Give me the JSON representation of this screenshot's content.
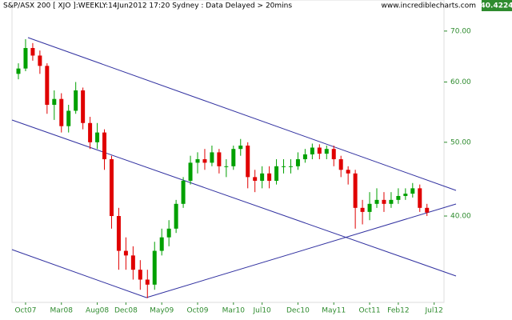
{
  "chart_data": {
    "type": "candlestick",
    "title": "S&P/ASX 200 [ XJO ]:WEEKLY:14Jun2012 17:20 Sydney : Data Delayed > 20mins",
    "source": "www.incrediblecharts.com",
    "last_price": 40.4224,
    "categories": [
      null,
      "Oct07",
      null,
      null,
      null,
      null,
      "Mar08",
      null,
      null,
      null,
      null,
      "Aug08",
      null,
      null,
      null,
      "Dec08",
      null,
      null,
      null,
      null,
      "May09",
      null,
      null,
      null,
      null,
      "Oct09",
      null,
      null,
      null,
      null,
      "Mar10",
      null,
      null,
      null,
      "Jul10",
      null,
      null,
      null,
      null,
      "Dec10",
      null,
      null,
      null,
      null,
      "May11",
      null,
      null,
      null,
      null,
      "Oct11",
      null,
      null,
      null,
      "Feb12",
      null,
      null,
      null,
      null,
      "Jul12"
    ],
    "open": [
      61.5,
      62.5,
      66.5,
      65,
      63,
      56,
      57,
      52.5,
      55,
      58.5,
      53,
      50,
      51.5,
      47.5,
      40,
      36,
      35.5,
      34,
      33,
      32.5,
      36,
      37.5,
      38.5,
      41.5,
      44.5,
      47,
      47.5,
      47,
      48.5,
      46.5,
      46.5,
      49,
      49.5,
      45,
      44.5,
      45.5,
      44.5,
      46.5,
      46.5,
      46.5,
      47.5,
      48.2,
      49.2,
      48.3,
      49,
      47.5,
      46,
      45.5,
      41,
      40.5,
      41.5,
      42,
      41.5,
      42,
      42.5,
      42.8,
      43.5,
      41,
      null
    ],
    "high": [
      63.5,
      68.3,
      67.5,
      66,
      63.5,
      58.5,
      58,
      56,
      60,
      59,
      54,
      53,
      52,
      48,
      41,
      37.5,
      36.5,
      35,
      34,
      37,
      38.5,
      39.5,
      42,
      45,
      48,
      48.5,
      49,
      49.5,
      49,
      47.5,
      49.5,
      50.5,
      50,
      46,
      46.5,
      46.5,
      47.5,
      47.5,
      47.5,
      48.5,
      49,
      49.8,
      49.7,
      49.5,
      49.5,
      48,
      46.5,
      46,
      42,
      43,
      43.5,
      43,
      43,
      43.5,
      43.5,
      44.2,
      44,
      41.5,
      null
    ],
    "low": [
      60.5,
      62,
      64,
      61.5,
      54.5,
      53.5,
      51.5,
      51.5,
      54.5,
      52,
      49,
      49,
      46,
      38.5,
      34,
      34,
      33,
      32,
      31.2,
      32,
      35.5,
      36.5,
      38,
      41,
      44,
      45.5,
      46,
      46.5,
      45.5,
      45,
      46,
      48,
      43.5,
      43,
      43.5,
      43.5,
      44,
      45.5,
      45.5,
      46,
      47,
      47.5,
      47.5,
      47.5,
      46.5,
      45,
      44,
      38.5,
      39,
      39.5,
      41,
      40.5,
      41,
      41.5,
      42,
      42.3,
      40.5,
      40,
      null
    ],
    "close": [
      62.5,
      66.5,
      65,
      63,
      56,
      57,
      52.5,
      55,
      58.5,
      53,
      50,
      51.5,
      47.5,
      40,
      36,
      35.5,
      34,
      33,
      32.5,
      36,
      37.5,
      38.5,
      41.5,
      44.5,
      47,
      47.5,
      47,
      48.5,
      46.5,
      46.5,
      49,
      49.5,
      45,
      44.5,
      45.5,
      44.5,
      46.5,
      46.5,
      46.5,
      47.5,
      48.2,
      49.2,
      48.3,
      49,
      47.5,
      46,
      45.5,
      41,
      40.5,
      41.5,
      42,
      41.5,
      42,
      42.5,
      42.8,
      43.5,
      41,
      40.4224,
      null
    ],
    "up_color": "#00a000",
    "down_color": "#e00000",
    "ylim": [
      30.8,
      76.9
    ],
    "log_y": true,
    "yticks": [
      {
        "value": 40,
        "label": "40.00"
      },
      {
        "value": 50,
        "label": "50.00"
      },
      {
        "value": 60,
        "label": "60.00"
      },
      {
        "value": 70,
        "label": "70.00"
      }
    ],
    "grid": false
  }
}
